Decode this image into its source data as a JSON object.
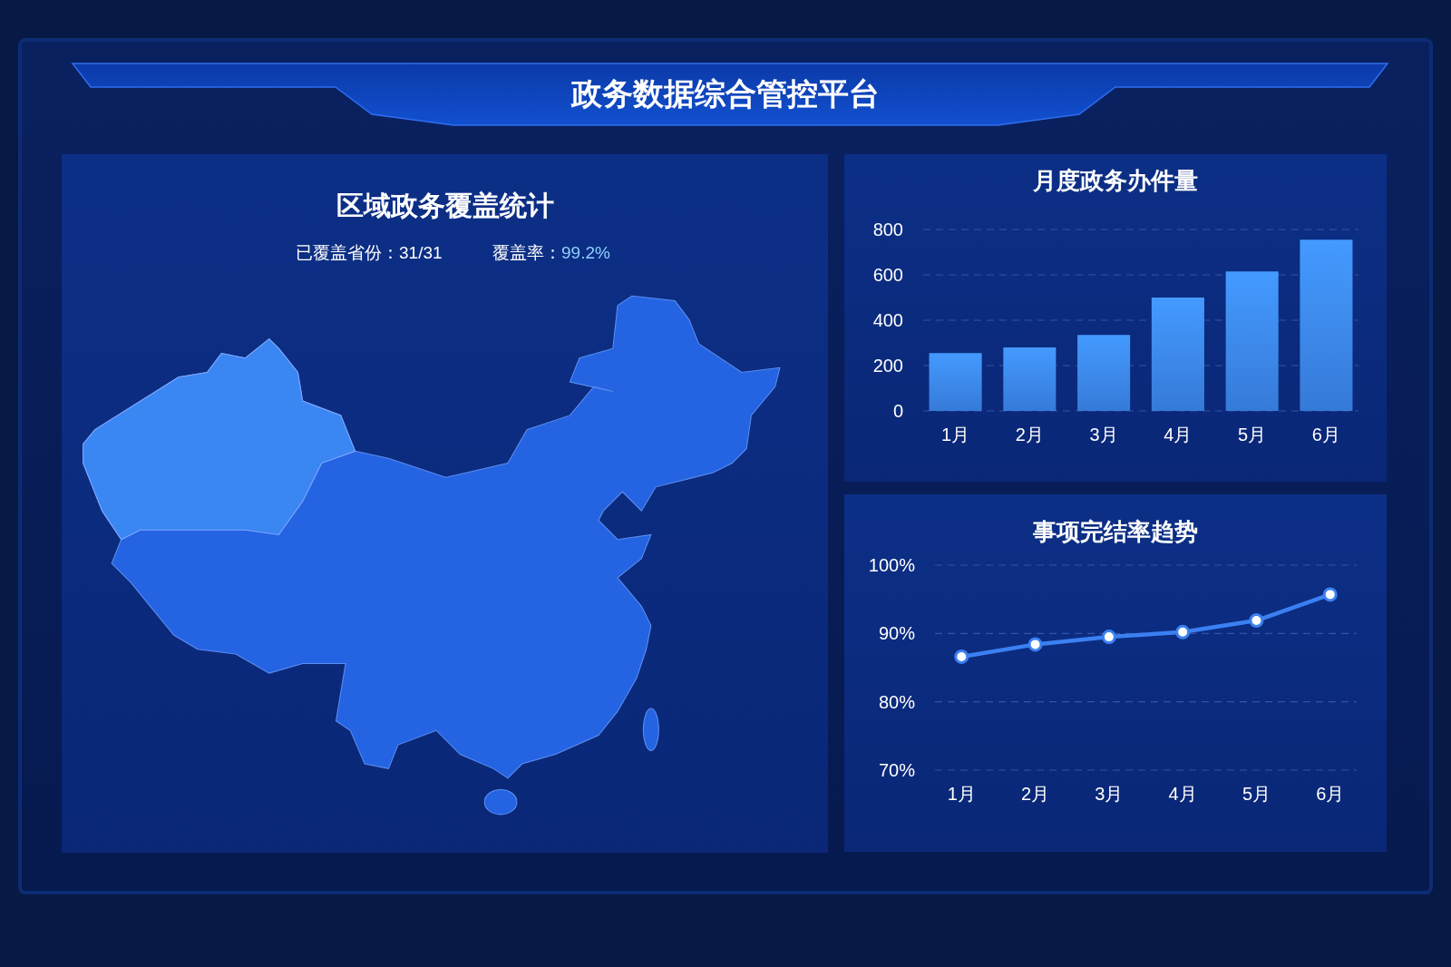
{
  "chart_data": [
    {
      "type": "other",
      "title": "政务数据综合管控平台"
    },
    {
      "type": "other",
      "title": "区域政务覆盖统计",
      "annotations": [
        "已覆盖省份：31/31",
        "覆盖率：99.2%"
      ]
    },
    {
      "type": "bar",
      "title": "月度政务办件量",
      "categories": [
        "1月",
        "2月",
        "3月",
        "4月",
        "5月",
        "6月"
      ],
      "values": [
        255,
        280,
        335,
        500,
        615,
        755
      ],
      "color": "#3d8af5",
      "ylim": [
        0,
        800
      ],
      "yticks": [
        0,
        200,
        400,
        600,
        800
      ],
      "grid": true
    },
    {
      "type": "line",
      "title": "事项完结率趋势",
      "categories": [
        "1月",
        "2月",
        "3月",
        "4月",
        "5月",
        "6月"
      ],
      "values": [
        86.6,
        88.4,
        89.5,
        90.2,
        91.9,
        95.7
      ],
      "color": "#3b80f2",
      "ylim": [
        70,
        100
      ],
      "yticks": [
        {
          "value": 70,
          "label": "70%"
        },
        {
          "value": 80,
          "label": "80%"
        },
        {
          "value": 90,
          "label": "90%"
        },
        {
          "value": 100,
          "label": "100%"
        }
      ],
      "grid": true,
      "marker": "circle",
      "line_style": "solid"
    }
  ]
}
